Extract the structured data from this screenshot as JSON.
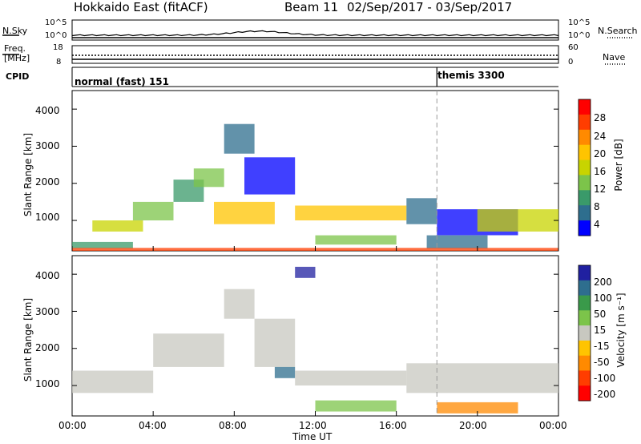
{
  "header": {
    "station_title": "Hokkaido East (fitACF)",
    "beam_label": "Beam 11",
    "date_range": "02/Sep/2017 - 03/Sep/2017"
  },
  "summary_panels": {
    "nsky_label": "N.Sky",
    "nsky_ticks": [
      "10^5",
      "10^0"
    ],
    "nsearch_label": "N.Search",
    "nsearch_ticks": [
      "10^5",
      "10^0"
    ],
    "freq_label_line1": "Freq.",
    "freq_label_line2": "[MHz]",
    "freq_ticks": [
      "18",
      "8"
    ],
    "nave_label": "Nave",
    "nave_ticks": [
      "60",
      "0"
    ],
    "cpid_label": "CPID",
    "cpid_segments": [
      {
        "name": "normal (fast) 151",
        "start_hour": 0
      },
      {
        "name": "themis 3300",
        "start_hour": 18
      }
    ]
  },
  "chart_data": [
    {
      "type": "heatmap",
      "title": "Power",
      "xlabel": "",
      "ylabel": "Slant Range [km]",
      "xlim": [
        0,
        24
      ],
      "ylim": [
        180,
        4500
      ],
      "y_ticks": [
        "4000",
        "3000",
        "2000",
        "1000"
      ],
      "y_tick_values": [
        4000,
        3000,
        2000,
        1000
      ],
      "colorbar_label": "Power [dB]",
      "colorbar_ticks": [
        "28",
        "24",
        "20",
        "16",
        "12",
        "8",
        "4"
      ],
      "colorbar_colors": [
        "#ff0000",
        "#ff3d00",
        "#ff8a00",
        "#ffc400",
        "#c8d400",
        "#7cc44a",
        "#3a9a6a",
        "#2e6e8e",
        "#0000ff"
      ],
      "cells": [
        {
          "x0": 0.0,
          "x1": 3.0,
          "y0": 250,
          "y1": 420,
          "level": 6
        },
        {
          "x0": 1.0,
          "x1": 3.5,
          "y0": 700,
          "y1": 1000,
          "level": 4
        },
        {
          "x0": 3.0,
          "x1": 5.0,
          "y0": 1000,
          "y1": 1500,
          "level": 5
        },
        {
          "x0": 5.0,
          "x1": 6.5,
          "y0": 1500,
          "y1": 2100,
          "level": 6
        },
        {
          "x0": 6.0,
          "x1": 7.5,
          "y0": 1900,
          "y1": 2400,
          "level": 5
        },
        {
          "x0": 7.5,
          "x1": 9.0,
          "y0": 2800,
          "y1": 3600,
          "level": 7
        },
        {
          "x0": 8.5,
          "x1": 11.0,
          "y0": 1700,
          "y1": 2700,
          "level": 8
        },
        {
          "x0": 7.0,
          "x1": 10.0,
          "y0": 900,
          "y1": 1500,
          "level": 3
        },
        {
          "x0": 11.0,
          "x1": 16.5,
          "y0": 1000,
          "y1": 1400,
          "level": 3
        },
        {
          "x0": 12.0,
          "x1": 16.0,
          "y0": 350,
          "y1": 600,
          "level": 5
        },
        {
          "x0": 16.5,
          "x1": 18.0,
          "y0": 900,
          "y1": 1600,
          "level": 7
        },
        {
          "x0": 18.0,
          "x1": 22.0,
          "y0": 600,
          "y1": 1300,
          "level": 8
        },
        {
          "x0": 17.5,
          "x1": 20.5,
          "y0": 250,
          "y1": 600,
          "level": 7
        },
        {
          "x0": 20.0,
          "x1": 24.0,
          "y0": 700,
          "y1": 1300,
          "level": 4
        },
        {
          "x0": 0.0,
          "x1": 24.0,
          "y0": 180,
          "y1": 260,
          "level": 1
        }
      ]
    },
    {
      "type": "heatmap",
      "title": "Velocity",
      "xlabel": "Time UT",
      "ylabel": "Slant Range [km]",
      "xlim": [
        0,
        24
      ],
      "ylim": [
        180,
        4500
      ],
      "x_ticks": [
        "00:00",
        "04:00",
        "08:00",
        "12:00",
        "16:00",
        "20:00",
        "00:00"
      ],
      "x_tick_hours": [
        0,
        4,
        8,
        12,
        16,
        20,
        24
      ],
      "y_ticks": [
        "4000",
        "3000",
        "2000",
        "1000"
      ],
      "y_tick_values": [
        4000,
        3000,
        2000,
        1000
      ],
      "colorbar_label": "Velocity [m s⁻¹]",
      "colorbar_ticks": [
        "200",
        "100",
        "50",
        "15",
        "-15",
        "-50",
        "-100",
        "-200"
      ],
      "colorbar_colors": [
        "#2020a0",
        "#2e6e8e",
        "#3a9a4a",
        "#7cc44a",
        "#c8c8c0",
        "#ffc400",
        "#ff8a00",
        "#ff3d00",
        "#ff0000"
      ],
      "cells": [
        {
          "x0": 0.0,
          "x1": 4.0,
          "y0": 800,
          "y1": 1400,
          "level": 4
        },
        {
          "x0": 4.0,
          "x1": 7.5,
          "y0": 1500,
          "y1": 2400,
          "level": 4
        },
        {
          "x0": 7.5,
          "x1": 9.0,
          "y0": 2800,
          "y1": 3600,
          "level": 4
        },
        {
          "x0": 9.0,
          "x1": 11.0,
          "y0": 1500,
          "y1": 2800,
          "level": 4
        },
        {
          "x0": 10.0,
          "x1": 11.0,
          "y0": 1200,
          "y1": 1500,
          "level": 1
        },
        {
          "x0": 11.0,
          "x1": 16.5,
          "y0": 1000,
          "y1": 1400,
          "level": 4
        },
        {
          "x0": 12.0,
          "x1": 16.0,
          "y0": 300,
          "y1": 600,
          "level": 3
        },
        {
          "x0": 16.5,
          "x1": 24.0,
          "y0": 800,
          "y1": 1600,
          "level": 4
        },
        {
          "x0": 18.0,
          "x1": 22.0,
          "y0": 250,
          "y1": 550,
          "level": 6
        },
        {
          "x0": 11.0,
          "x1": 12.0,
          "y0": 3900,
          "y1": 4200,
          "level": 0
        }
      ]
    }
  ]
}
